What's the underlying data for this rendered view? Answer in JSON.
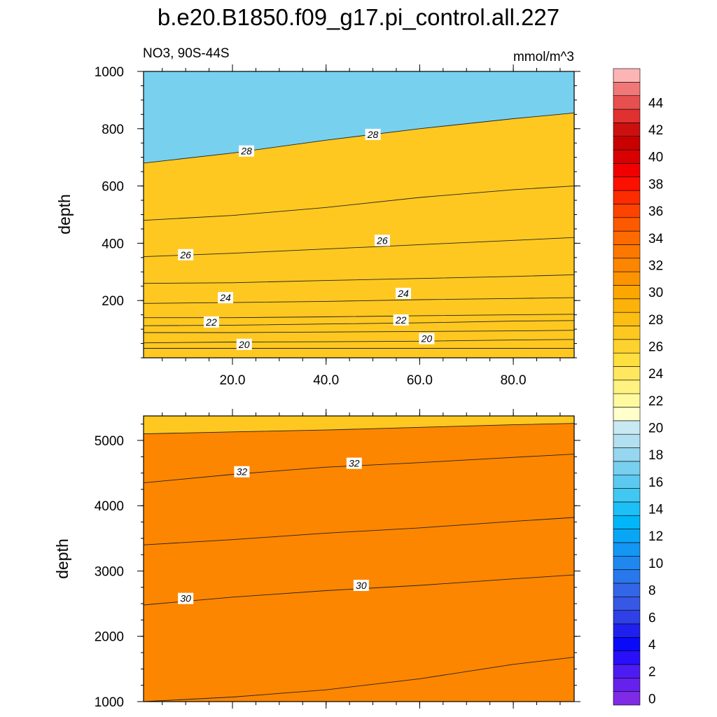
{
  "chart_data": [
    {
      "type": "filled-contour",
      "title": "b.e20.B1850.f09_g17.pi_control.all.227",
      "subtitle_left": "NO3, 90S-44S",
      "subtitle_right": "mmol/m^3",
      "xlabel": "",
      "ylabel": "depth",
      "xlim": [
        1,
        93
      ],
      "ylim": [
        1000,
        0
      ],
      "x_ticks": [
        20,
        40,
        60,
        80
      ],
      "x_tick_labels": [
        "20.0",
        "40.0",
        "60.0",
        "80.0"
      ],
      "y_ticks": [
        200,
        400,
        600,
        800,
        1000
      ],
      "y_tick_labels": [
        "200",
        "400",
        "600",
        "800",
        "1000"
      ],
      "contour_lines": [
        {
          "level": 19,
          "x": [
            1,
            20,
            40,
            60,
            80,
            93
          ],
          "depth": [
            33,
            33,
            33,
            33,
            33,
            33
          ]
        },
        {
          "level": 20,
          "x": [
            1,
            20,
            40,
            60,
            80,
            93
          ],
          "depth": [
            52,
            55,
            56,
            58,
            62,
            64
          ]
        },
        {
          "level": 21,
          "x": [
            1,
            20,
            40,
            60,
            80,
            93
          ],
          "depth": [
            88,
            88,
            90,
            92,
            94,
            96
          ]
        },
        {
          "level": 22,
          "x": [
            1,
            20,
            40,
            60,
            80,
            93
          ],
          "depth": [
            112,
            114,
            118,
            122,
            128,
            130
          ]
        },
        {
          "level": 23,
          "x": [
            1,
            20,
            40,
            60,
            80,
            93
          ],
          "depth": [
            140,
            140,
            143,
            147,
            150,
            152
          ]
        },
        {
          "level": 24,
          "x": [
            1,
            20,
            40,
            60,
            80,
            93
          ],
          "depth": [
            190,
            193,
            197,
            203,
            207,
            210
          ]
        },
        {
          "level": 25,
          "x": [
            1,
            20,
            40,
            60,
            80,
            93
          ],
          "depth": [
            260,
            262,
            270,
            277,
            284,
            290
          ]
        },
        {
          "level": 26,
          "x": [
            1,
            20,
            40,
            60,
            80,
            93
          ],
          "depth": [
            353,
            365,
            380,
            395,
            410,
            420
          ]
        },
        {
          "level": 27,
          "x": [
            1,
            20,
            40,
            60,
            80,
            93
          ],
          "depth": [
            480,
            497,
            525,
            560,
            587,
            600
          ]
        },
        {
          "level": 28,
          "x": [
            1,
            20,
            40,
            60,
            80,
            93
          ],
          "depth": [
            680,
            715,
            760,
            800,
            835,
            855
          ]
        }
      ],
      "contour_labels": [
        {
          "text": "20",
          "x": 22.5,
          "depth": 47
        },
        {
          "text": "20",
          "x": 61.5,
          "depth": 67
        },
        {
          "text": "22",
          "x": 15.5,
          "depth": 125
        },
        {
          "text": "22",
          "x": 56,
          "depth": 132
        },
        {
          "text": "24",
          "x": 18.5,
          "depth": 210
        },
        {
          "text": "24",
          "x": 56.5,
          "depth": 225
        },
        {
          "text": "26",
          "x": 10,
          "depth": 360
        },
        {
          "text": "26",
          "x": 52,
          "depth": 410
        },
        {
          "text": "28",
          "x": 23,
          "depth": 722
        },
        {
          "text": "28",
          "x": 50,
          "depth": 780
        }
      ]
    },
    {
      "type": "filled-contour",
      "xlabel": "",
      "ylabel": "depth",
      "xlim": [
        1,
        93
      ],
      "ylim": [
        5375,
        1000
      ],
      "y_ticks": [
        1000,
        2000,
        3000,
        4000,
        5000
      ],
      "y_tick_labels": [
        "1000",
        "2000",
        "3000",
        "4000",
        "5000"
      ],
      "contour_lines": [
        {
          "level": 29,
          "x": [
            1,
            20,
            40,
            60,
            80,
            93
          ],
          "depth": [
            1000,
            1070,
            1180,
            1350,
            1570,
            1680
          ]
        },
        {
          "level": 30,
          "x": [
            1,
            20,
            40,
            60,
            80,
            93
          ],
          "depth": [
            2480,
            2600,
            2700,
            2780,
            2880,
            2940
          ]
        },
        {
          "level": 31,
          "x": [
            1,
            20,
            40,
            60,
            80,
            93
          ],
          "depth": [
            3400,
            3480,
            3580,
            3660,
            3760,
            3820
          ]
        },
        {
          "level": 32,
          "x": [
            1,
            20,
            40,
            60,
            80,
            93
          ],
          "depth": [
            4350,
            4480,
            4590,
            4660,
            4740,
            4790
          ]
        },
        {
          "level": 33,
          "x": [
            1,
            20,
            40,
            60,
            80,
            93
          ],
          "depth": [
            5100,
            5130,
            5160,
            5200,
            5240,
            5260
          ]
        }
      ],
      "contour_labels": [
        {
          "text": "30",
          "x": 10,
          "depth": 2580
        },
        {
          "text": "30",
          "x": 47.5,
          "depth": 2780
        },
        {
          "text": "32",
          "x": 22,
          "depth": 4520
        },
        {
          "text": "32",
          "x": 46,
          "depth": 4650
        }
      ]
    }
  ],
  "colorbar": {
    "labels": [
      "0",
      "2",
      "4",
      "6",
      "8",
      "10",
      "12",
      "14",
      "16",
      "18",
      "20",
      "22",
      "24",
      "26",
      "28",
      "30",
      "32",
      "34",
      "36",
      "38",
      "40",
      "42",
      "44"
    ],
    "colors": [
      "#7f2ae4",
      "#6622ec",
      "#4d1cf2",
      "#2a10f8",
      "#0a0af8",
      "#2020ee",
      "#2e40e6",
      "#3658e4",
      "#3366e6",
      "#2878ec",
      "#1e88f0",
      "#1496f4",
      "#0aa6f6",
      "#00b6f8",
      "#1cc0f6",
      "#40c8f2",
      "#5ccaf0",
      "#78d0ef",
      "#96d6ef",
      "#b2e0f0",
      "#c8e8f2",
      "#ffffcc",
      "#fffaa0",
      "#fff280",
      "#ffe860",
      "#ffde40",
      "#fed22e",
      "#fec820",
      "#fdbe14",
      "#fcb20a",
      "#fca600",
      "#fc9400",
      "#fc8600",
      "#fc7800",
      "#fc6a00",
      "#fc5a00",
      "#fc4400",
      "#fc2c00",
      "#fc1000",
      "#f00000",
      "#d80000",
      "#c80000",
      "#cc1010",
      "#e03030",
      "#e65050",
      "#f07878",
      "#fcb4b4"
    ]
  }
}
